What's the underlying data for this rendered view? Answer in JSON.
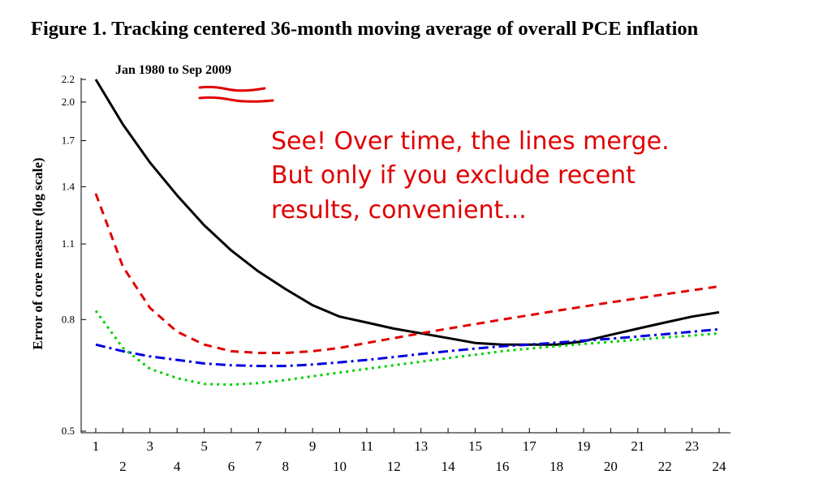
{
  "title": "Figure 1. Tracking centered 36-month moving average of overall PCE inflation",
  "chart_data": {
    "type": "line",
    "subtitle": "Jan 1980 to Sep 2009",
    "ylabel": "Error of core measure (log scale)",
    "xlabel": "",
    "y_scale": "log",
    "ylim": [
      0.5,
      2.2
    ],
    "xlim": [
      1,
      24
    ],
    "y_ticks": [
      0.5,
      0.8,
      1.1,
      1.4,
      1.7,
      2.0,
      2.2
    ],
    "x_ticks": [
      1,
      2,
      3,
      4,
      5,
      6,
      7,
      8,
      9,
      10,
      11,
      12,
      13,
      14,
      15,
      16,
      17,
      18,
      19,
      20,
      21,
      22,
      23,
      24
    ],
    "legend": "none",
    "grid": false,
    "annotation": {
      "lines": [
        "See! Over time, the lines merge.",
        "But only if you exclude recent",
        "results, convenient..."
      ],
      "color": "#e00000"
    },
    "series": [
      {
        "style": "solid",
        "color": "#000000",
        "x": [
          1,
          2,
          3,
          4,
          5,
          6,
          7,
          8,
          9,
          10,
          11,
          12,
          13,
          14,
          15,
          16,
          17,
          18,
          19,
          20,
          21,
          22,
          23,
          24
        ],
        "y": [
          2.2,
          1.82,
          1.55,
          1.35,
          1.19,
          1.07,
          0.98,
          0.91,
          0.85,
          0.81,
          0.79,
          0.77,
          0.755,
          0.74,
          0.725,
          0.72,
          0.72,
          0.72,
          0.73,
          0.75,
          0.77,
          0.79,
          0.81,
          0.825
        ]
      },
      {
        "style": "dashed",
        "color": "#e00000",
        "x": [
          1,
          2,
          3,
          4,
          5,
          6,
          7,
          8,
          9,
          10,
          11,
          12,
          13,
          14,
          15,
          16,
          17,
          18,
          19,
          20,
          21,
          22,
          23,
          24
        ],
        "y": [
          1.36,
          1.0,
          0.84,
          0.76,
          0.72,
          0.7,
          0.695,
          0.695,
          0.7,
          0.71,
          0.725,
          0.74,
          0.755,
          0.77,
          0.785,
          0.8,
          0.815,
          0.83,
          0.845,
          0.86,
          0.875,
          0.89,
          0.905,
          0.92
        ]
      },
      {
        "style": "dashdot",
        "color": "#0000e0",
        "x": [
          1,
          2,
          3,
          4,
          5,
          6,
          7,
          8,
          9,
          10,
          11,
          12,
          13,
          14,
          15,
          16,
          17,
          18,
          19,
          20,
          21,
          22,
          23,
          24
        ],
        "y": [
          0.72,
          0.7,
          0.685,
          0.675,
          0.665,
          0.66,
          0.658,
          0.658,
          0.662,
          0.668,
          0.675,
          0.683,
          0.692,
          0.7,
          0.708,
          0.715,
          0.72,
          0.726,
          0.732,
          0.738,
          0.745,
          0.752,
          0.76,
          0.768
        ]
      },
      {
        "style": "dotted",
        "color": "#00d000",
        "x": [
          1,
          2,
          3,
          4,
          5,
          6,
          7,
          8,
          9,
          10,
          11,
          12,
          13,
          14,
          15,
          16,
          17,
          18,
          19,
          20,
          21,
          22,
          23,
          24
        ],
        "y": [
          0.83,
          0.71,
          0.65,
          0.625,
          0.61,
          0.608,
          0.612,
          0.62,
          0.63,
          0.64,
          0.65,
          0.66,
          0.67,
          0.68,
          0.69,
          0.7,
          0.708,
          0.715,
          0.722,
          0.728,
          0.735,
          0.742,
          0.748,
          0.755
        ]
      }
    ]
  }
}
